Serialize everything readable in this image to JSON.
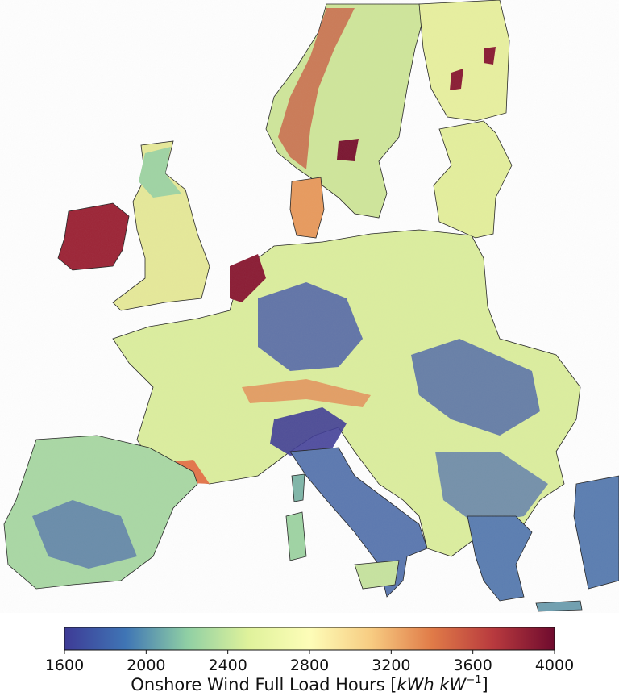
{
  "map": {
    "region": "Europe",
    "colormap": "Spectral_r",
    "has_country_borders": true
  },
  "colorbar": {
    "min": 1600,
    "max": 4000,
    "ticks": [
      "1600",
      "2000",
      "2400",
      "2800",
      "3200",
      "3600",
      "4000"
    ],
    "label_main": "Onshore Wind Full Load Hours [",
    "label_unit": "kWh kW",
    "label_exp": "−1",
    "label_close": "]",
    "colors": [
      "#3e3b96",
      "#3f75b5",
      "#8fcfa4",
      "#dff29b",
      "#fdfdb8",
      "#f7cc82",
      "#e07b48",
      "#b83a3e",
      "#6f0b2e"
    ]
  }
}
